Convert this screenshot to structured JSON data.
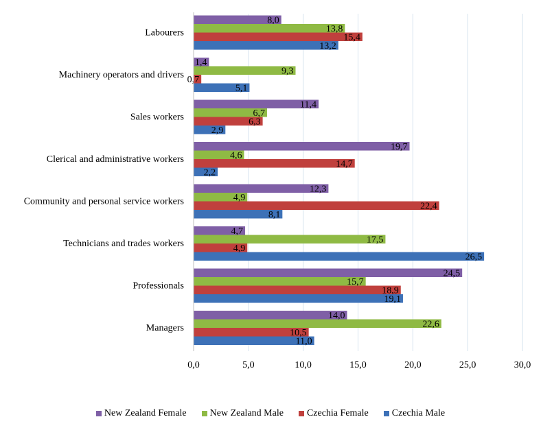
{
  "chart_data": {
    "type": "bar",
    "orientation": "horizontal",
    "categories": [
      "Labourers",
      "Machinery operators and drivers",
      "Sales workers",
      "Clerical and administrative workers",
      "Community and personal service workers",
      "Technicians and trades workers",
      "Professionals",
      "Managers"
    ],
    "series": [
      {
        "name": "New Zealand Female",
        "color": "#7f5fa6",
        "values": [
          8.0,
          1.4,
          11.4,
          19.7,
          12.3,
          4.7,
          24.5,
          14.0
        ],
        "labels": [
          "8,0",
          "1,4",
          "11,4",
          "19,7",
          "12,3",
          "4,7",
          "24,5",
          "14,0"
        ]
      },
      {
        "name": "New Zealand Male",
        "color": "#8fba44",
        "values": [
          13.8,
          9.3,
          6.7,
          4.6,
          4.9,
          17.5,
          15.7,
          22.6
        ],
        "labels": [
          "13,8",
          "9,3",
          "6,7",
          "4,6",
          "4,9",
          "17,5",
          "15,7",
          "22,6"
        ]
      },
      {
        "name": "Czechia Female",
        "color": "#c0403d",
        "values": [
          15.4,
          0.7,
          6.3,
          14.7,
          22.4,
          4.9,
          18.9,
          10.5
        ],
        "labels": [
          "15,4",
          "0,7",
          "6,3",
          "14,7",
          "22,4",
          "4,9",
          "18,9",
          "10,5"
        ]
      },
      {
        "name": "Czechia Male",
        "color": "#3d71b7",
        "values": [
          13.2,
          5.1,
          2.9,
          2.2,
          8.1,
          26.5,
          19.1,
          11.0
        ],
        "labels": [
          "13,2",
          "5,1",
          "2,9",
          "2,2",
          "8,1",
          "26,5",
          "19,1",
          "11,0"
        ]
      }
    ],
    "xlim": [
      0,
      30
    ],
    "xticks": [
      0,
      5,
      10,
      15,
      20,
      25,
      30
    ],
    "xtick_labels": [
      "0,0",
      "5,0",
      "10,0",
      "15,0",
      "20,0",
      "25,0",
      "30,0"
    ],
    "grid": "vertical",
    "legend_position": "bottom",
    "title": "",
    "xlabel": "",
    "ylabel": ""
  }
}
